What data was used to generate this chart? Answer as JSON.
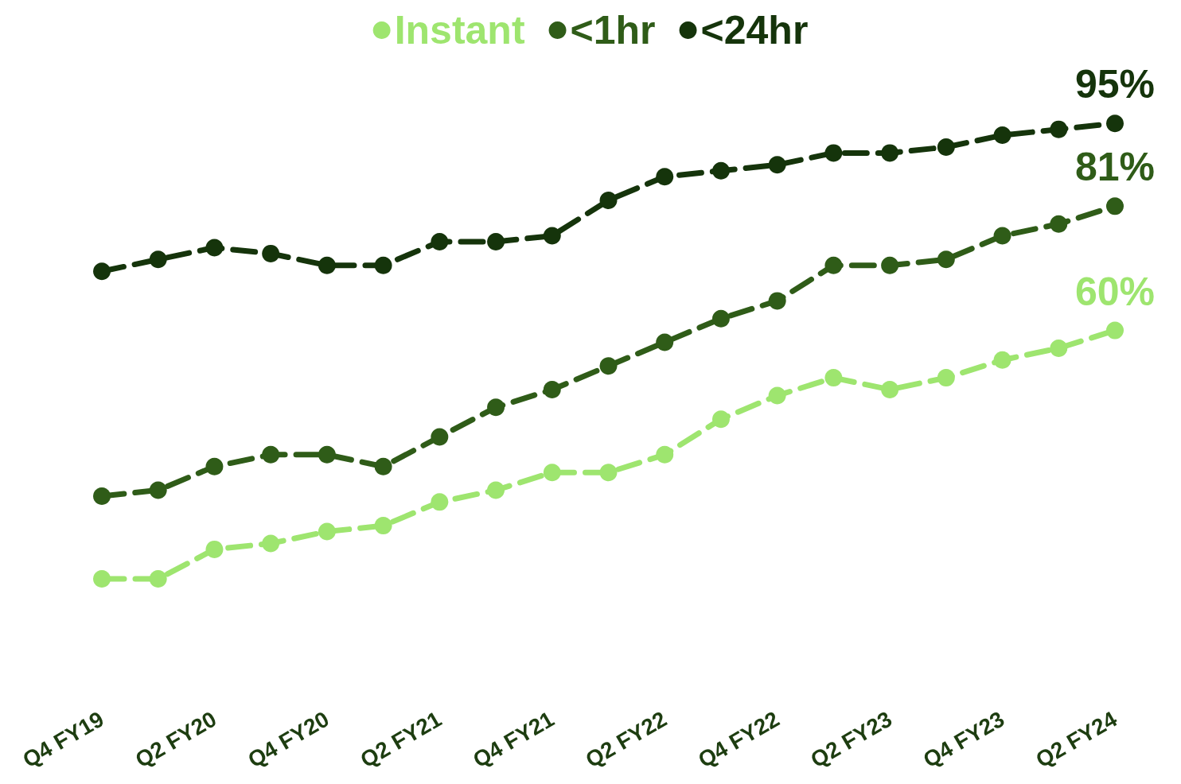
{
  "chart_data": {
    "type": "line",
    "categories": [
      "Q4 FY19",
      null,
      "Q2 FY20",
      null,
      "Q4 FY20",
      null,
      "Q2 FY21",
      null,
      "Q4 FY21",
      null,
      "Q2 FY22",
      null,
      "Q4 FY22",
      null,
      "Q2 FY23",
      null,
      "Q4 FY23",
      null,
      "Q2 FY24"
    ],
    "series": [
      {
        "name": "Instant",
        "color": "#9ee56f",
        "values": [
          18,
          18,
          23,
          24,
          26,
          27,
          31,
          33,
          36,
          36,
          39,
          45,
          49,
          52,
          50,
          52,
          55,
          57,
          60
        ],
        "value_labels": [
          null,
          null,
          null,
          null,
          null,
          null,
          null,
          null,
          null,
          null,
          null,
          null,
          null,
          null,
          null,
          null,
          null,
          null,
          "60%"
        ]
      },
      {
        "name": "<1hr",
        "color": "#2f5c18",
        "values": [
          32,
          33,
          37,
          39,
          39,
          37,
          42,
          47,
          50,
          54,
          58,
          62,
          65,
          71,
          71,
          72,
          76,
          78,
          81
        ],
        "value_labels": [
          null,
          null,
          null,
          null,
          null,
          null,
          null,
          null,
          null,
          null,
          null,
          null,
          null,
          null,
          null,
          null,
          null,
          null,
          "81%"
        ]
      },
      {
        "name": "<24hr",
        "color": "#15340b",
        "values": [
          70,
          72,
          74,
          73,
          71,
          71,
          75,
          75,
          76,
          82,
          86,
          87,
          88,
          90,
          90,
          91,
          93,
          94,
          95
        ],
        "value_labels": [
          null,
          null,
          null,
          null,
          null,
          null,
          null,
          null,
          null,
          null,
          null,
          null,
          null,
          null,
          null,
          null,
          null,
          null,
          "95%"
        ]
      }
    ],
    "tick_labels": "x",
    "legend": "top",
    "marker": "circle",
    "line_style": "dashed",
    "grid": false
  }
}
